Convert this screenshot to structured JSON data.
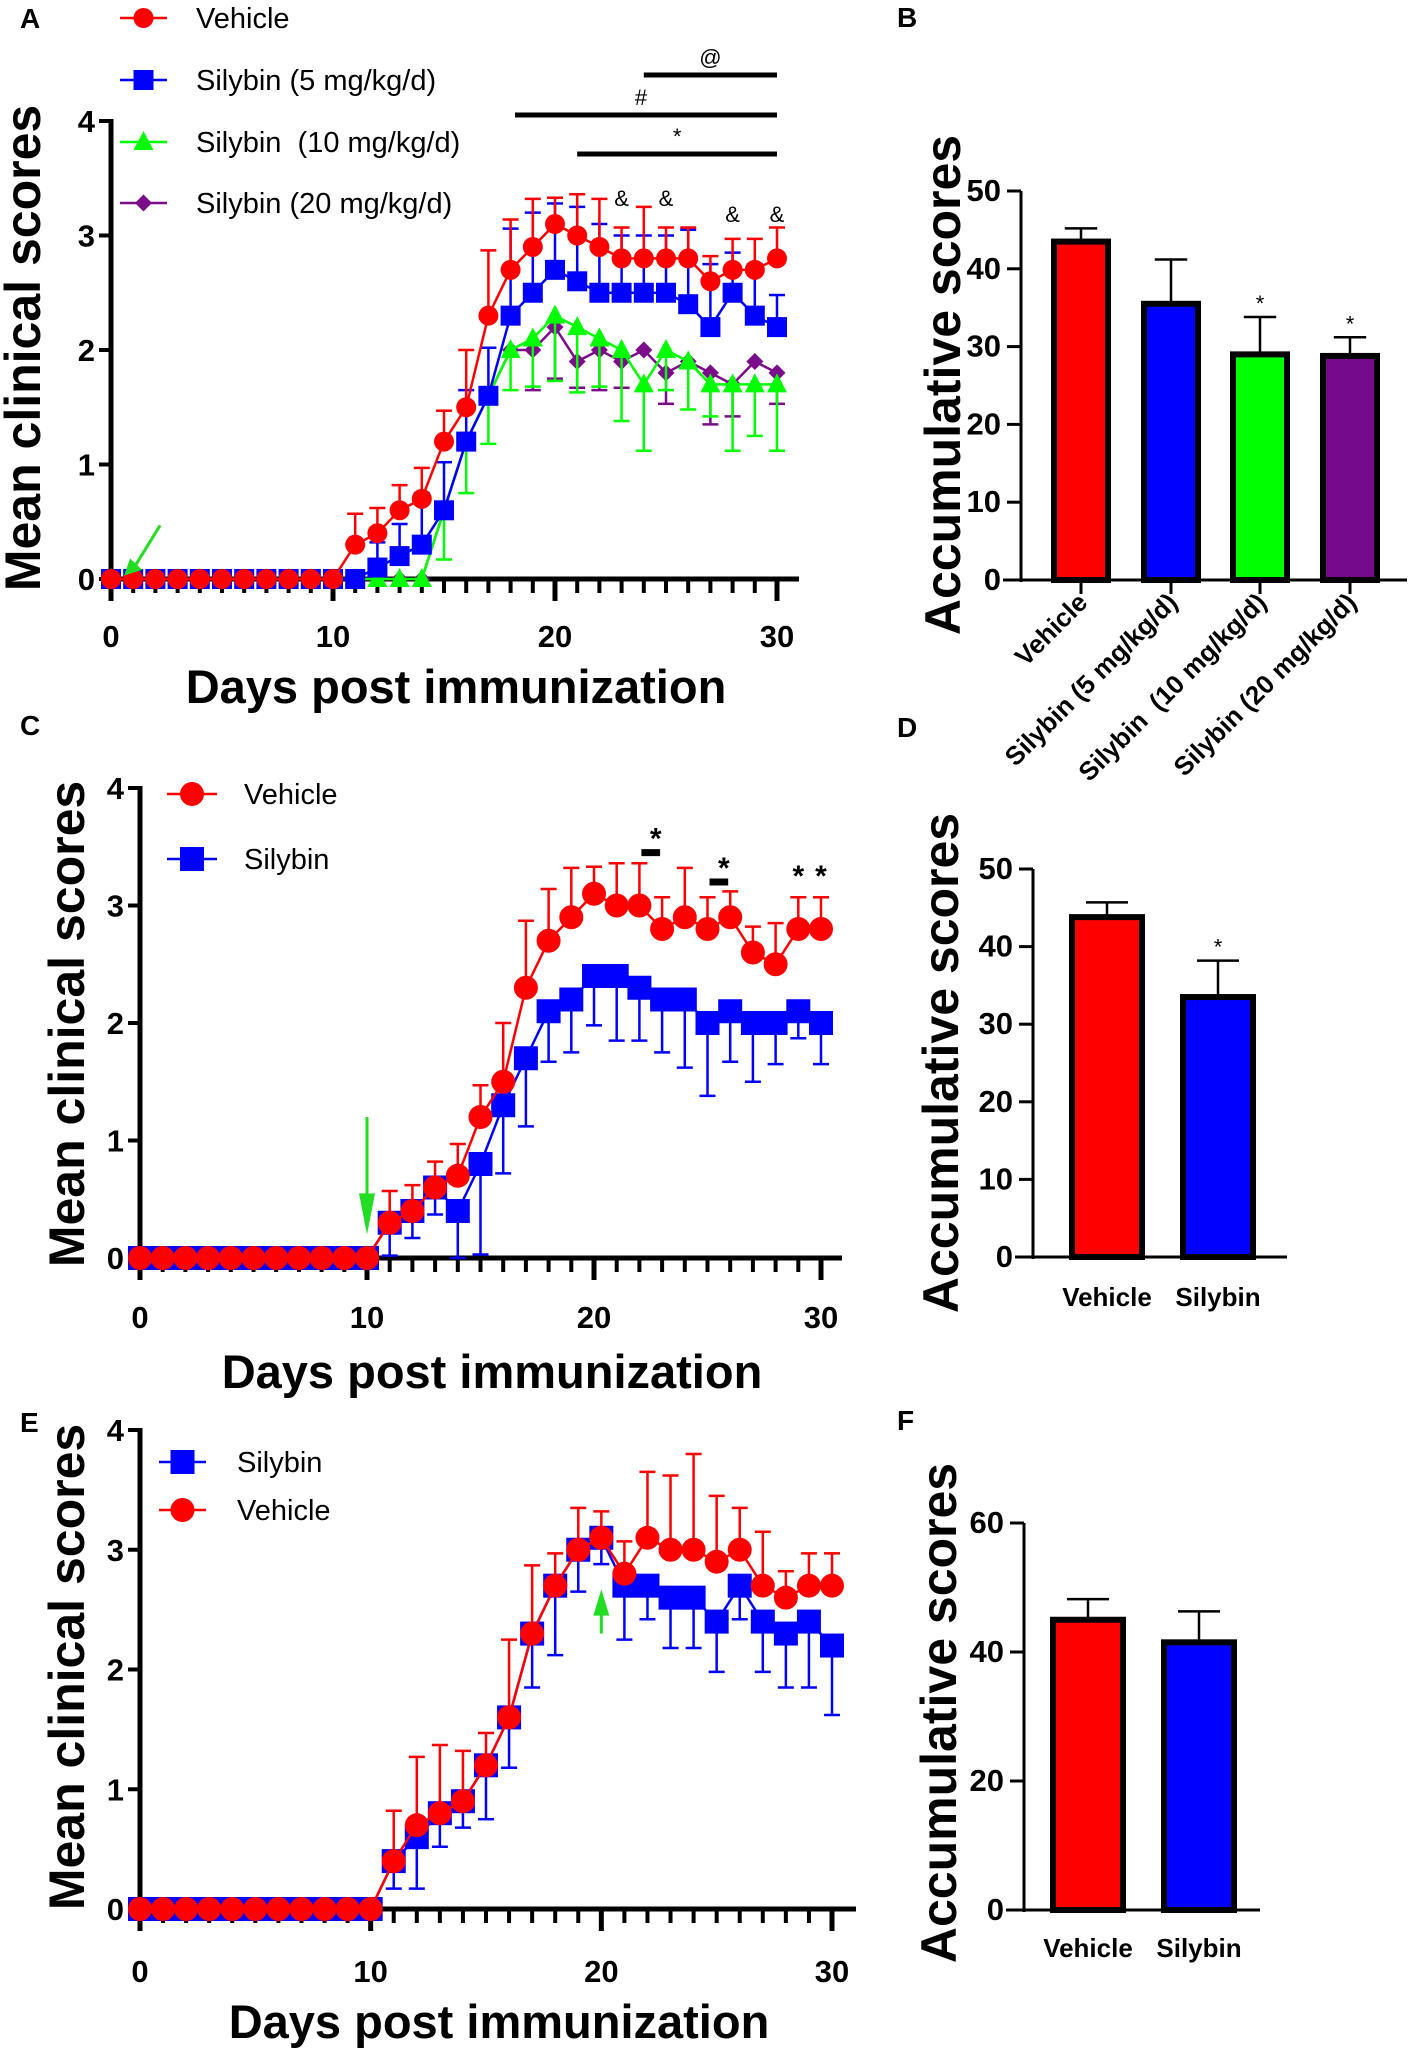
{
  "chart_data": [
    {
      "panel": "A",
      "type": "line",
      "xlabel": "Days post immunization",
      "ylabel": "Mean clinical scores",
      "xlim": [
        0,
        30
      ],
      "ylim": [
        0,
        4
      ],
      "xticks": [
        "0",
        "10",
        "20",
        "30"
      ],
      "yticks": [
        "0",
        "1",
        "2",
        "3",
        "4"
      ],
      "legend_position": "top-left",
      "x": [
        0,
        1,
        2,
        3,
        4,
        5,
        6,
        7,
        8,
        9,
        10,
        11,
        12,
        13,
        14,
        15,
        16,
        17,
        18,
        19,
        20,
        21,
        22,
        23,
        24,
        25,
        26,
        27,
        28,
        29,
        30
      ],
      "series": [
        {
          "name": "Silybin (20 mg/kg/d)",
          "color": "#7B0C8A",
          "marker": "diamond",
          "error_dir": "down",
          "values": [
            0,
            0,
            0,
            0,
            0,
            0,
            0,
            0,
            0,
            0,
            0,
            0,
            0,
            0,
            0,
            0.6,
            1.2,
            1.6,
            2.0,
            2.0,
            2.2,
            1.9,
            2.0,
            1.9,
            2.0,
            1.8,
            1.9,
            1.8,
            1.7,
            1.9,
            1.8
          ],
          "error": [
            0,
            0,
            0,
            0,
            0,
            0,
            0,
            0,
            0,
            0,
            0,
            0,
            0,
            0,
            0,
            0,
            0,
            0,
            0,
            0.35,
            0.45,
            0.23,
            0.35,
            0.23,
            0,
            0.27,
            0,
            0.45,
            0.28,
            0,
            0.27
          ]
        },
        {
          "name": "Silybin  (10 mg/kg/d)",
          "color": "#00FF00",
          "marker": "triangle",
          "error_dir": "down",
          "values": [
            0,
            0,
            0,
            0,
            0,
            0,
            0,
            0,
            0,
            0,
            0,
            0,
            0,
            0,
            0,
            0.6,
            1.2,
            1.6,
            2.0,
            2.1,
            2.3,
            2.2,
            2.1,
            2.0,
            1.7,
            2.0,
            1.9,
            1.7,
            1.7,
            1.7,
            1.7
          ],
          "error": [
            0,
            0,
            0,
            0,
            0,
            0,
            0,
            0,
            0,
            0,
            0,
            0,
            0,
            0,
            0,
            0.43,
            0.45,
            0.42,
            0.35,
            0.42,
            0.57,
            0.57,
            0.42,
            0.62,
            0.58,
            0.35,
            0.42,
            0.28,
            0.58,
            0.45,
            0.58
          ]
        },
        {
          "name": "Silybin (5 mg/kg/d)",
          "color": "#0000FF",
          "marker": "square",
          "error_dir": "up",
          "values": [
            0,
            0,
            0,
            0,
            0,
            0,
            0,
            0,
            0,
            0,
            0,
            0,
            0.1,
            0.2,
            0.3,
            0.6,
            1.2,
            1.6,
            2.3,
            2.5,
            2.7,
            2.6,
            2.5,
            2.5,
            2.5,
            2.5,
            2.4,
            2.2,
            2.5,
            2.3,
            2.2
          ],
          "error": [
            0,
            0,
            0,
            0,
            0,
            0,
            0,
            0,
            0,
            0,
            0,
            0,
            0.22,
            0.28,
            0.45,
            0.42,
            0.45,
            0.42,
            0.76,
            0.7,
            0.58,
            0.65,
            0.6,
            0.5,
            0.5,
            0.5,
            0.65,
            0.55,
            0.35,
            0.45,
            0.28
          ]
        },
        {
          "name": "Vehicle",
          "color": "#FF0000",
          "marker": "circle",
          "error_dir": "up",
          "values": [
            0,
            0,
            0,
            0,
            0,
            0,
            0,
            0,
            0,
            0,
            0,
            0.3,
            0.4,
            0.6,
            0.7,
            1.2,
            1.5,
            2.3,
            2.7,
            2.9,
            3.1,
            3.0,
            2.9,
            2.8,
            2.8,
            2.8,
            2.8,
            2.6,
            2.7,
            2.7,
            2.8
          ],
          "error": [
            0,
            0,
            0,
            0,
            0,
            0,
            0,
            0,
            0,
            0,
            0,
            0.27,
            0.22,
            0.22,
            0.27,
            0.27,
            0.5,
            0.57,
            0.44,
            0.42,
            0.23,
            0.36,
            0.42,
            0.27,
            0.45,
            0.27,
            0.27,
            0.22,
            0.27,
            0.27,
            0.27
          ]
        }
      ],
      "legend_order": [
        3,
        2,
        1,
        0
      ],
      "significance_bars": [
        {
          "label": "@",
          "from": 24,
          "to": 30
        },
        {
          "label": "#",
          "from": 18.2,
          "to": 30
        },
        {
          "label": "*",
          "from": 21,
          "to": 30
        }
      ],
      "annotations": [
        {
          "label": "&",
          "x": 23
        },
        {
          "label": "&",
          "x": 25
        },
        {
          "label": "&",
          "x": 28
        },
        {
          "label": "&",
          "x": 30
        }
      ],
      "arrow": {
        "x": 0.5,
        "direction": "down-left",
        "color": "#22DD22"
      }
    },
    {
      "panel": "B",
      "type": "bar",
      "ylabel": "Accumulative scores",
      "ylim": [
        0,
        50
      ],
      "yticks": [
        "0",
        "10",
        "20",
        "30",
        "40",
        "50"
      ],
      "categories": [
        "Vehicle",
        "Silybin (5 mg/kg/d)",
        "Silybin  (10 mg/kg/d)",
        "Silybin (20 mg/kg/d)"
      ],
      "values": [
        43.5,
        35.5,
        29.0,
        28.8
      ],
      "error": [
        1.7,
        5.7,
        4.8,
        2.4
      ],
      "colors": [
        "#FF0000",
        "#0000FF",
        "#00FF00",
        "#750A8C"
      ],
      "significance": [
        "",
        "",
        "*",
        "*"
      ]
    },
    {
      "panel": "C",
      "type": "line",
      "xlabel": "Days post immunization",
      "ylabel": "Mean clinical scores",
      "xlim": [
        0,
        30
      ],
      "ylim": [
        0,
        4
      ],
      "xticks": [
        "0",
        "10",
        "20",
        "30"
      ],
      "yticks": [
        "0",
        "1",
        "2",
        "3",
        "4"
      ],
      "legend_position": "top-left",
      "x": [
        0,
        1,
        2,
        3,
        4,
        5,
        6,
        7,
        8,
        9,
        10,
        11,
        12,
        13,
        14,
        15,
        16,
        17,
        18,
        19,
        20,
        21,
        22,
        23,
        24,
        25,
        26,
        27,
        28,
        29,
        30
      ],
      "series": [
        {
          "name": "Silybin",
          "color": "#0000FF",
          "marker": "square",
          "error_dir": "down",
          "values": [
            0,
            0,
            0,
            0,
            0,
            0,
            0,
            0,
            0,
            0,
            0,
            0.3,
            0.4,
            0.6,
            0.4,
            0.8,
            1.3,
            1.7,
            2.1,
            2.2,
            2.4,
            2.4,
            2.3,
            2.2,
            2.2,
            2.0,
            2.1,
            2.0,
            2.0,
            2.1,
            2.0
          ],
          "error": [
            0,
            0,
            0,
            0,
            0,
            0,
            0,
            0,
            0,
            0,
            0,
            0.28,
            0.23,
            0.23,
            0.4,
            0.77,
            0.58,
            0.58,
            0.43,
            0.45,
            0.42,
            0.55,
            0.45,
            0.45,
            0.58,
            0.62,
            0.43,
            0.5,
            0.35,
            0.23,
            0.35
          ]
        },
        {
          "name": "Vehicle",
          "color": "#FF0000",
          "marker": "circle",
          "error_dir": "up",
          "values": [
            0,
            0,
            0,
            0,
            0,
            0,
            0,
            0,
            0,
            0,
            0,
            0.3,
            0.4,
            0.6,
            0.7,
            1.2,
            1.5,
            2.3,
            2.7,
            2.9,
            3.1,
            3.0,
            3.0,
            2.8,
            2.9,
            2.8,
            2.9,
            2.6,
            2.5,
            2.8,
            2.8
          ],
          "error": [
            0,
            0,
            0,
            0,
            0,
            0,
            0,
            0,
            0,
            0,
            0,
            0.27,
            0.22,
            0.22,
            0.27,
            0.27,
            0.5,
            0.57,
            0.44,
            0.42,
            0.23,
            0.36,
            0.36,
            0.27,
            0.42,
            0.27,
            0.22,
            0.22,
            0.35,
            0.27,
            0.27
          ]
        }
      ],
      "legend_order": [
        1,
        0
      ],
      "significance_bars": [
        {
          "label": "*",
          "from": 22,
          "to": 23,
          "y": 3.45
        },
        {
          "label": "*",
          "from": 25,
          "to": 26,
          "y": 3.2
        }
      ],
      "annotations": [
        {
          "label": "*",
          "x": 29,
          "y": 3.2
        },
        {
          "label": "*",
          "x": 30,
          "y": 3.2
        }
      ],
      "arrow": {
        "x": 10,
        "direction": "down",
        "color": "#22DD22"
      }
    },
    {
      "panel": "D",
      "type": "bar",
      "ylabel": "Accumulative scores",
      "ylim": [
        0,
        50
      ],
      "yticks": [
        "0",
        "10",
        "20",
        "30",
        "40",
        "50"
      ],
      "categories": [
        "Vehicle",
        "Silybin"
      ],
      "values": [
        43.8,
        33.5
      ],
      "error": [
        1.9,
        4.7
      ],
      "colors": [
        "#FF0000",
        "#0000FF"
      ],
      "significance": [
        "",
        "*"
      ]
    },
    {
      "panel": "E",
      "type": "line",
      "xlabel": "Days post immunization",
      "ylabel": "Mean clinical scores",
      "xlim": [
        0,
        30
      ],
      "ylim": [
        0,
        4
      ],
      "xticks": [
        "0",
        "10",
        "20",
        "30"
      ],
      "yticks": [
        "0",
        "1",
        "2",
        "3",
        "4"
      ],
      "legend_position": "top-left",
      "x": [
        0,
        1,
        2,
        3,
        4,
        5,
        6,
        7,
        8,
        9,
        10,
        11,
        12,
        13,
        14,
        15,
        16,
        17,
        18,
        19,
        20,
        21,
        22,
        23,
        24,
        25,
        26,
        27,
        28,
        29,
        30
      ],
      "series": [
        {
          "name": "Silybin",
          "color": "#0000FF",
          "marker": "square",
          "error_dir": "down",
          "values": [
            0,
            0,
            0,
            0,
            0,
            0,
            0,
            0,
            0,
            0,
            0,
            0.4,
            0.6,
            0.8,
            0.9,
            1.2,
            1.6,
            2.3,
            2.7,
            3.0,
            3.1,
            2.7,
            2.7,
            2.6,
            2.6,
            2.4,
            2.7,
            2.4,
            2.3,
            2.4,
            2.2
          ],
          "error": [
            0,
            0,
            0,
            0,
            0,
            0,
            0,
            0,
            0,
            0,
            0,
            0.23,
            0.43,
            0.28,
            0.22,
            0.45,
            0.42,
            0.45,
            0.58,
            0.35,
            0.22,
            0.45,
            0.28,
            0.42,
            0.42,
            0.42,
            0.28,
            0.42,
            0.45,
            0.55,
            0.58
          ]
        },
        {
          "name": "Vehicle",
          "color": "#FF0000",
          "marker": "circle",
          "error_dir": "up",
          "values": [
            0,
            0,
            0,
            0,
            0,
            0,
            0,
            0,
            0,
            0,
            0,
            0.4,
            0.7,
            0.8,
            0.9,
            1.2,
            1.6,
            2.3,
            2.7,
            3.0,
            3.1,
            2.8,
            3.1,
            3.0,
            3.0,
            2.9,
            3.0,
            2.7,
            2.6,
            2.7,
            2.7
          ],
          "error": [
            0,
            0,
            0,
            0,
            0,
            0,
            0,
            0,
            0,
            0,
            0,
            0.42,
            0.57,
            0.57,
            0.42,
            0.27,
            0.65,
            0.57,
            0.27,
            0.35,
            0.22,
            0.27,
            0.55,
            0.62,
            0.8,
            0.55,
            0.35,
            0.45,
            0.22,
            0.27,
            0.27
          ]
        }
      ],
      "legend_order": [
        0,
        1
      ],
      "significance_bars": [],
      "annotations": [],
      "arrow": {
        "x": 20,
        "direction": "up",
        "color": "#22DD22"
      }
    },
    {
      "panel": "F",
      "type": "bar",
      "ylabel": "Accumulative scores",
      "ylim": [
        0,
        60
      ],
      "yticks": [
        "0",
        "20",
        "40",
        "60"
      ],
      "categories": [
        "Vehicle",
        "Silybin"
      ],
      "values": [
        45.0,
        41.5
      ],
      "error": [
        3.2,
        4.8
      ],
      "colors": [
        "#FF0000",
        "#0000FF"
      ],
      "significance": [
        "",
        ""
      ]
    }
  ]
}
